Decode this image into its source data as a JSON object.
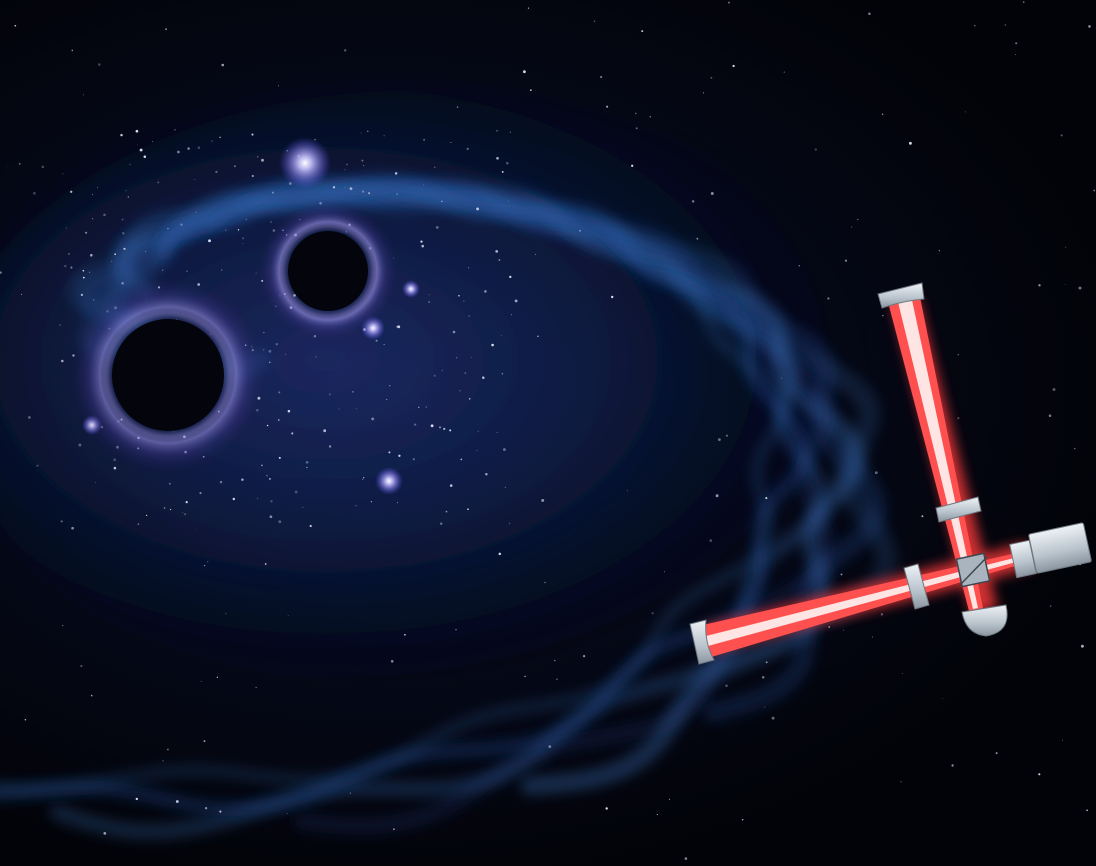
{
  "scene": {
    "subject": "binary-black-hole-merger-with-laser-interferometer",
    "colors": {
      "space": "#020308",
      "wave": "#1d4f9a",
      "wave_highlight": "#3a78c8",
      "star_glow": "#b9b4ff",
      "laser": "#ff4a4a",
      "laser_core": "#ffe6e6",
      "optics": "#c9d3dc"
    },
    "icons": [
      "black-hole-large",
      "black-hole-small",
      "gravitational-wave-spiral",
      "interferometer"
    ]
  }
}
